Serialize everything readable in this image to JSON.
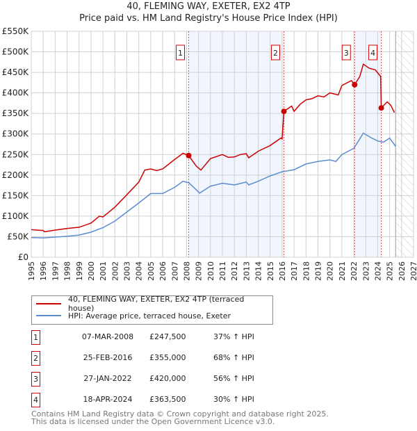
{
  "chart_data": {
    "type": "line",
    "title": "40, FLEMING WAY, EXETER, EX2 4TP",
    "subtitle": "Price paid vs. HM Land Registry's House Price Index (HPI)",
    "xlim": [
      1995,
      2027
    ],
    "ylim": [
      0,
      550000
    ],
    "x_ticks": [
      "1995",
      "1996",
      "1997",
      "1998",
      "1999",
      "2000",
      "2001",
      "2002",
      "2003",
      "2004",
      "2005",
      "2006",
      "2007",
      "2008",
      "2009",
      "2010",
      "2011",
      "2012",
      "2013",
      "2014",
      "2015",
      "2016",
      "2017",
      "2018",
      "2019",
      "2020",
      "2021",
      "2022",
      "2023",
      "2024",
      "2025",
      "2026",
      "2027"
    ],
    "y_ticks": [
      {
        "value": 0,
        "label": "£0"
      },
      {
        "value": 50000,
        "label": "£50K"
      },
      {
        "value": 100000,
        "label": "£100K"
      },
      {
        "value": 150000,
        "label": "£150K"
      },
      {
        "value": 200000,
        "label": "£200K"
      },
      {
        "value": 250000,
        "label": "£250K"
      },
      {
        "value": 300000,
        "label": "£300K"
      },
      {
        "value": 350000,
        "label": "£350K"
      },
      {
        "value": 400000,
        "label": "£400K"
      },
      {
        "value": 450000,
        "label": "£450K"
      },
      {
        "value": 500000,
        "label": "£500K"
      },
      {
        "value": 550000,
        "label": "£550K"
      }
    ],
    "grid": true,
    "forecast_hatch_from": 2025.5,
    "shaded_ranges": [
      [
        2008.18,
        2016.15
      ],
      [
        2022.07,
        2024.3
      ]
    ],
    "series": [
      {
        "name": "40, FLEMING WAY, EXETER, EX2 4TP (terraced house)",
        "color": "#cc0000",
        "x": [
          1995,
          1996,
          1996.1,
          1997,
          1998,
          1999,
          2000,
          2000.7,
          2001,
          2002,
          2003,
          2004,
          2004.5,
          2005,
          2005.5,
          2006,
          2007,
          2007.7,
          2008.18,
          2008.8,
          2009.2,
          2010,
          2011,
          2011.5,
          2012,
          2012.5,
          2013,
          2013.2,
          2014,
          2015,
          2015.9,
          2016.0,
          2016.15,
          2016.8,
          2017,
          2017.5,
          2018,
          2018.5,
          2019,
          2019.5,
          2020,
          2020.7,
          2021,
          2021.8,
          2022.07,
          2022.5,
          2022.8,
          2023.3,
          2023.8,
          2024.1,
          2024.25,
          2024.3,
          2024.8,
          2025.1,
          2025.4
        ],
        "y": [
          67000,
          65000,
          62000,
          66000,
          70000,
          73000,
          83000,
          100000,
          98000,
          122000,
          152000,
          183000,
          212000,
          215000,
          211000,
          215000,
          238000,
          253000,
          247500,
          222000,
          212000,
          240000,
          250000,
          243000,
          244000,
          250000,
          252000,
          242000,
          258000,
          272000,
          290000,
          288000,
          355000,
          368000,
          355000,
          372000,
          383000,
          386000,
          393000,
          390000,
          400000,
          395000,
          418000,
          430000,
          420000,
          440000,
          470000,
          460000,
          456000,
          445000,
          440000,
          363500,
          378000,
          370000,
          352000
        ]
      },
      {
        "name": "HPI: Average price, terraced house, Exeter",
        "color": "#5b8bd0",
        "x": [
          1995,
          1996,
          1997,
          1998,
          1999,
          2000,
          2001,
          2002,
          2003,
          2004,
          2005,
          2006,
          2007,
          2007.7,
          2008.2,
          2009.1,
          2010,
          2011,
          2012,
          2013,
          2013.2,
          2014,
          2015,
          2016,
          2017,
          2018,
          2019,
          2020,
          2020.5,
          2021,
          2022,
          2022.8,
          2023.5,
          2024,
          2024.5,
          2025,
          2025.5
        ],
        "y": [
          48000,
          47000,
          49000,
          51000,
          54000,
          61000,
          72000,
          88000,
          110000,
          132000,
          155000,
          155000,
          170000,
          185000,
          181000,
          156000,
          173000,
          180000,
          176000,
          183000,
          176000,
          185000,
          198000,
          208000,
          213000,
          227000,
          233000,
          237000,
          233000,
          250000,
          265000,
          302000,
          290000,
          283000,
          280000,
          290000,
          270000
        ]
      }
    ],
    "markers": [
      {
        "label": "1",
        "x": 2008.18,
        "y": 247500
      },
      {
        "label": "2",
        "x": 2016.15,
        "y": 355000
      },
      {
        "label": "3",
        "x": 2022.07,
        "y": 420000
      },
      {
        "label": "4",
        "x": 2024.3,
        "y": 363500
      }
    ],
    "legend": {
      "placement": "below",
      "entries": [
        "40, FLEMING WAY, EXETER, EX2 4TP (terraced house)",
        "HPI: Average price, terraced house, Exeter"
      ]
    }
  },
  "transactions": [
    {
      "num": "1",
      "date": "07-MAR-2008",
      "price": "£247,500",
      "hpi": "37% ↑ HPI"
    },
    {
      "num": "2",
      "date": "25-FEB-2016",
      "price": "£355,000",
      "hpi": "68% ↑ HPI"
    },
    {
      "num": "3",
      "date": "27-JAN-2022",
      "price": "£420,000",
      "hpi": "56% ↑ HPI"
    },
    {
      "num": "4",
      "date": "18-APR-2024",
      "price": "£363,500",
      "hpi": "30% ↑ HPI"
    }
  ],
  "footer": {
    "line1": "Contains HM Land Registry data © Crown copyright and database right 2025.",
    "line2": "This data is licensed under the Open Government Licence v3.0."
  }
}
